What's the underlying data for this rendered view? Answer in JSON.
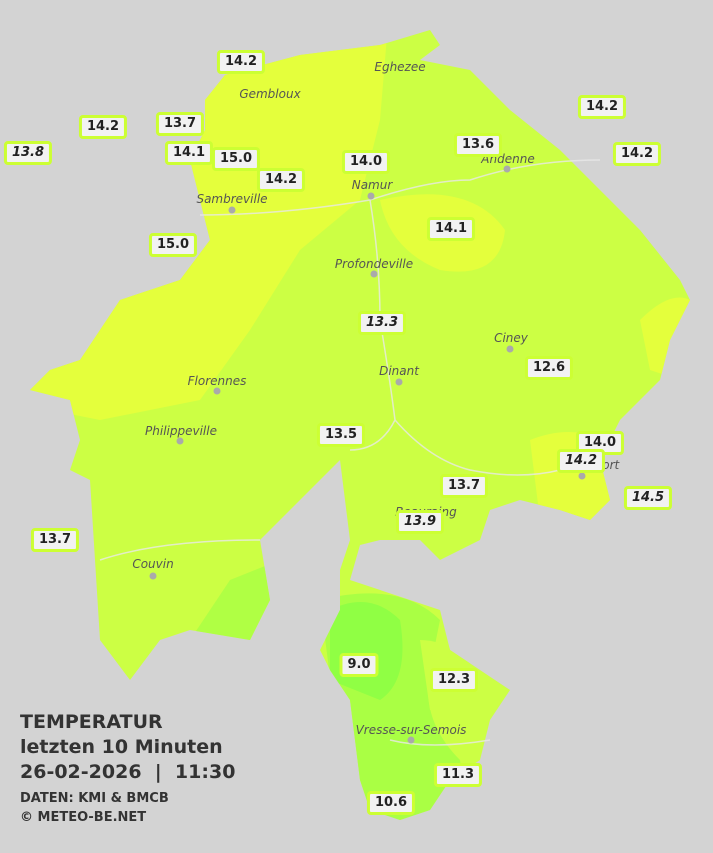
{
  "title": {
    "line1": "TEMPERATUR",
    "line2": "letzten 10 Minuten",
    "line3": "26-02-2026  |  11:30",
    "source": "DATEN: KMI & BMCB",
    "copyright": "© METEO-BE.NET"
  },
  "towns": [
    {
      "name": "Eghezee"
    },
    {
      "name": "Gembloux"
    },
    {
      "name": "Andenne"
    },
    {
      "name": "Namur"
    },
    {
      "name": "Sambreville"
    },
    {
      "name": "Profondeville"
    },
    {
      "name": "Ciney"
    },
    {
      "name": "Dinant"
    },
    {
      "name": "Florennes"
    },
    {
      "name": "Philippeville"
    },
    {
      "name": "Rochefort"
    },
    {
      "name": "Beauraing"
    },
    {
      "name": "Couvin"
    },
    {
      "name": "Vresse-sur-Semois"
    }
  ],
  "stations": [
    {
      "label": "14.2"
    },
    {
      "label": "14.2"
    },
    {
      "label": "13.7"
    },
    {
      "label": "13.8",
      "italic": true
    },
    {
      "label": "14.1"
    },
    {
      "label": "15.0"
    },
    {
      "label": "14.2"
    },
    {
      "label": "14.0"
    },
    {
      "label": "13.6"
    },
    {
      "label": "14.2"
    },
    {
      "label": "14.2"
    },
    {
      "label": "15.0"
    },
    {
      "label": "14.1"
    },
    {
      "label": "13.3",
      "italic": true
    },
    {
      "label": "12.6"
    },
    {
      "label": "13.5"
    },
    {
      "label": "14.0"
    },
    {
      "label": "14.2",
      "italic": true
    },
    {
      "label": "14.5",
      "italic": true
    },
    {
      "label": "13.7"
    },
    {
      "label": "13.9",
      "italic": true
    },
    {
      "label": "13.7"
    },
    {
      "label": "9.0"
    },
    {
      "label": "12.3"
    },
    {
      "label": "11.3"
    },
    {
      "label": "10.6"
    }
  ]
}
